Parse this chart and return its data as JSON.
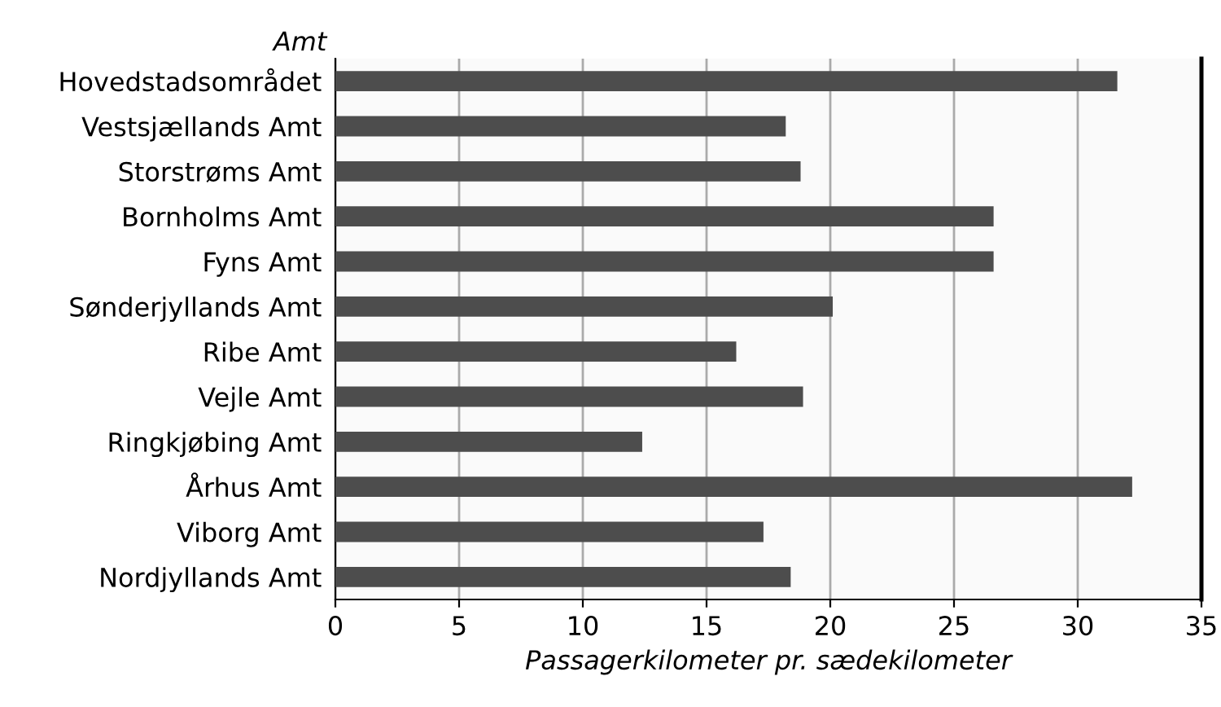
{
  "chart_data": {
    "type": "bar",
    "orientation": "horizontal",
    "ylabel": "Amt",
    "xlabel": "Passagerkilometer pr. sædekilometer",
    "categories": [
      "Hovedstadsområdet",
      "Vestsjællands Amt",
      "Storstrøms Amt",
      "Bornholms Amt",
      "Fyns Amt",
      "Sønderjyllands Amt",
      "Ribe Amt",
      "Vejle Amt",
      "Ringkjøbing Amt",
      "Århus Amt",
      "Viborg Amt",
      "Nordjyllands Amt"
    ],
    "values": [
      31.6,
      18.2,
      18.8,
      26.6,
      26.6,
      20.1,
      16.2,
      18.9,
      12.4,
      32.2,
      17.3,
      18.4
    ],
    "color": "#4d4d4d",
    "xlim": [
      0,
      35
    ],
    "xticks": [
      0,
      5,
      10,
      15,
      20,
      25,
      30,
      35
    ],
    "grid": "x"
  }
}
